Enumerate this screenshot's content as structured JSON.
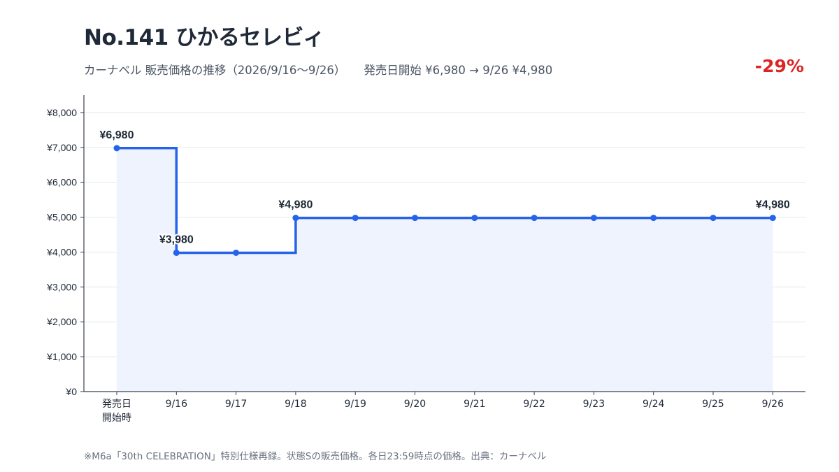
{
  "header": {
    "title": "No.141 ひかるセレビィ",
    "subtitle_main": "カーナベル 販売価格の推移（2026/9/16〜9/26）",
    "subtitle_change": "発売日開始 ¥6,980 → 9/26 ¥4,980",
    "change_pct": "-29%"
  },
  "footnote": "※M6a「30th CELEBRATION」特別仕様再録。状態Sの販売価格。各日23:59時点の価格。出典：カーナベル",
  "colors": {
    "line": "#2563eb",
    "fill": "#eef3fd",
    "change": "#dc2626"
  },
  "chart_data": {
    "type": "line",
    "step": true,
    "categories": [
      [
        "発売日",
        "開始時"
      ],
      [
        "9/16"
      ],
      [
        "9/17"
      ],
      [
        "9/18"
      ],
      [
        "9/19"
      ],
      [
        "9/20"
      ],
      [
        "9/21"
      ],
      [
        "9/22"
      ],
      [
        "9/23"
      ],
      [
        "9/24"
      ],
      [
        "9/25"
      ],
      [
        "9/26"
      ]
    ],
    "values": [
      6980,
      3980,
      3980,
      4980,
      4980,
      4980,
      4980,
      4980,
      4980,
      4980,
      4980,
      4980
    ],
    "ylim": [
      0,
      8000
    ],
    "yticks": [
      0,
      1000,
      2000,
      3000,
      4000,
      5000,
      6000,
      7000,
      8000
    ],
    "ytick_labels": [
      "¥0",
      "¥1,000",
      "¥2,000",
      "¥3,000",
      "¥4,000",
      "¥5,000",
      "¥6,000",
      "¥7,000",
      "¥8,000"
    ],
    "data_labels": [
      {
        "index": 0,
        "text": "¥6,980"
      },
      {
        "index": 1,
        "text": "¥3,980"
      },
      {
        "index": 3,
        "text": "¥4,980"
      },
      {
        "index": 11,
        "text": "¥4,980"
      }
    ],
    "grid": true
  }
}
